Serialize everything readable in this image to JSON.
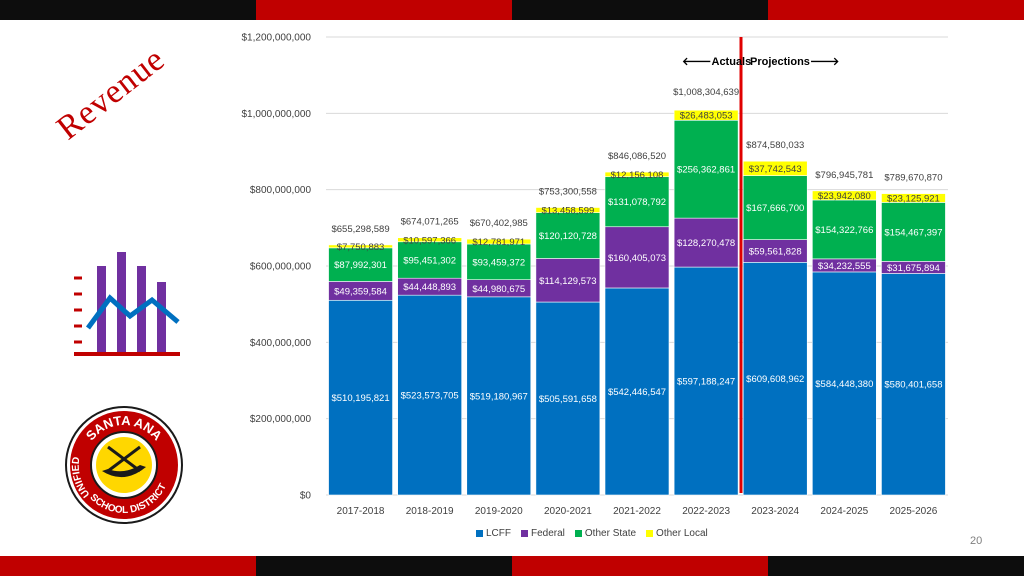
{
  "slide": {
    "title": "Revenue",
    "page_number": "20",
    "band_colors": [
      "#0d0d0d",
      "#c00000",
      "#0d0d0d",
      "#c00000"
    ]
  },
  "logo": {
    "top_text": "SANTA ANA",
    "bottom_text": "SCHOOL DISTRICT",
    "left_text": "UNIFIED",
    "colors": {
      "ring": "#c00000",
      "inner": "#ffd700",
      "outline": "#1a1a1a"
    }
  },
  "annotations": {
    "actuals": "Actuals",
    "projections": "Projections",
    "divider_color": "#e00000"
  },
  "chart_data": {
    "type": "bar",
    "stacked": true,
    "categories": [
      "2017-2018",
      "2018-2019",
      "2019-2020",
      "2020-2021",
      "2021-2022",
      "2022-2023",
      "2023-2024",
      "2024-2025",
      "2025-2026"
    ],
    "ylim": [
      0,
      1200000000
    ],
    "yticks": [
      0,
      200000000,
      400000000,
      600000000,
      800000000,
      1000000000,
      1200000000
    ],
    "ytick_labels": [
      "$0",
      "$200,000,000",
      "$400,000,000",
      "$600,000,000",
      "$800,000,000",
      "$1,000,000,000",
      "$1,200,000,000"
    ],
    "series": [
      {
        "name": "LCFF",
        "color": "#0070c0",
        "values": [
          510195821,
          523573705,
          519180967,
          505591658,
          542446547,
          597188247,
          609608962,
          584448380,
          580401658
        ],
        "labels": [
          "$510,195,821",
          "$523,573,705",
          "$519,180,967",
          "$505,591,658",
          "$542,446,547",
          "$597,188,247",
          "$609,608,962",
          "$584,448,380",
          "$580,401,658"
        ]
      },
      {
        "name": "Federal",
        "color": "#7030a0",
        "values": [
          49359584,
          44448893,
          44980675,
          114129573,
          160405073,
          128270478,
          59561828,
          34232555,
          31675894
        ],
        "labels": [
          "$49,359,584",
          "$44,448,893",
          "$44,980,675",
          "$114,129,573",
          "$160,405,073",
          "$128,270,478",
          "$59,561,828",
          "$34,232,555",
          "$31,675,894"
        ]
      },
      {
        "name": "Other State",
        "color": "#00b050",
        "values": [
          87992301,
          95451302,
          93459372,
          120120728,
          131078792,
          256362861,
          167666700,
          154322766,
          154467397
        ],
        "labels": [
          "$87,992,301",
          "$95,451,302",
          "$93,459,372",
          "$120,120,728",
          "$131,078,792",
          "$256,362,861",
          "$167,666,700",
          "$154,322,766",
          "$154,467,397"
        ]
      },
      {
        "name": "Other Local",
        "color": "#ffff00",
        "values": [
          7750883,
          10597366,
          12781971,
          13458599,
          12156108,
          26483053,
          37742543,
          23942080,
          23125921
        ],
        "labels": [
          "$7,750,883",
          "$10,597,366",
          "$12,781,971",
          "$13,458,599",
          "$12,156,108",
          "$26,483,053",
          "$37,742,543",
          "$23,942,080",
          "$23,125,921"
        ]
      }
    ],
    "totals": [
      655298589,
      674071265,
      670402985,
      753300558,
      846086520,
      1008304639,
      874580033,
      796945781,
      789670870
    ],
    "total_labels": [
      "$655,298,589",
      "$674,071,265",
      "$670,402,985",
      "$753,300,558",
      "$846,086,520",
      "$1,008,304,639",
      "$874,580,033",
      "$796,945,781",
      "$789,670,870"
    ],
    "legend": [
      "LCFF",
      "Federal",
      "Other State",
      "Other Local"
    ],
    "legend_position": "bottom",
    "grid": true
  }
}
